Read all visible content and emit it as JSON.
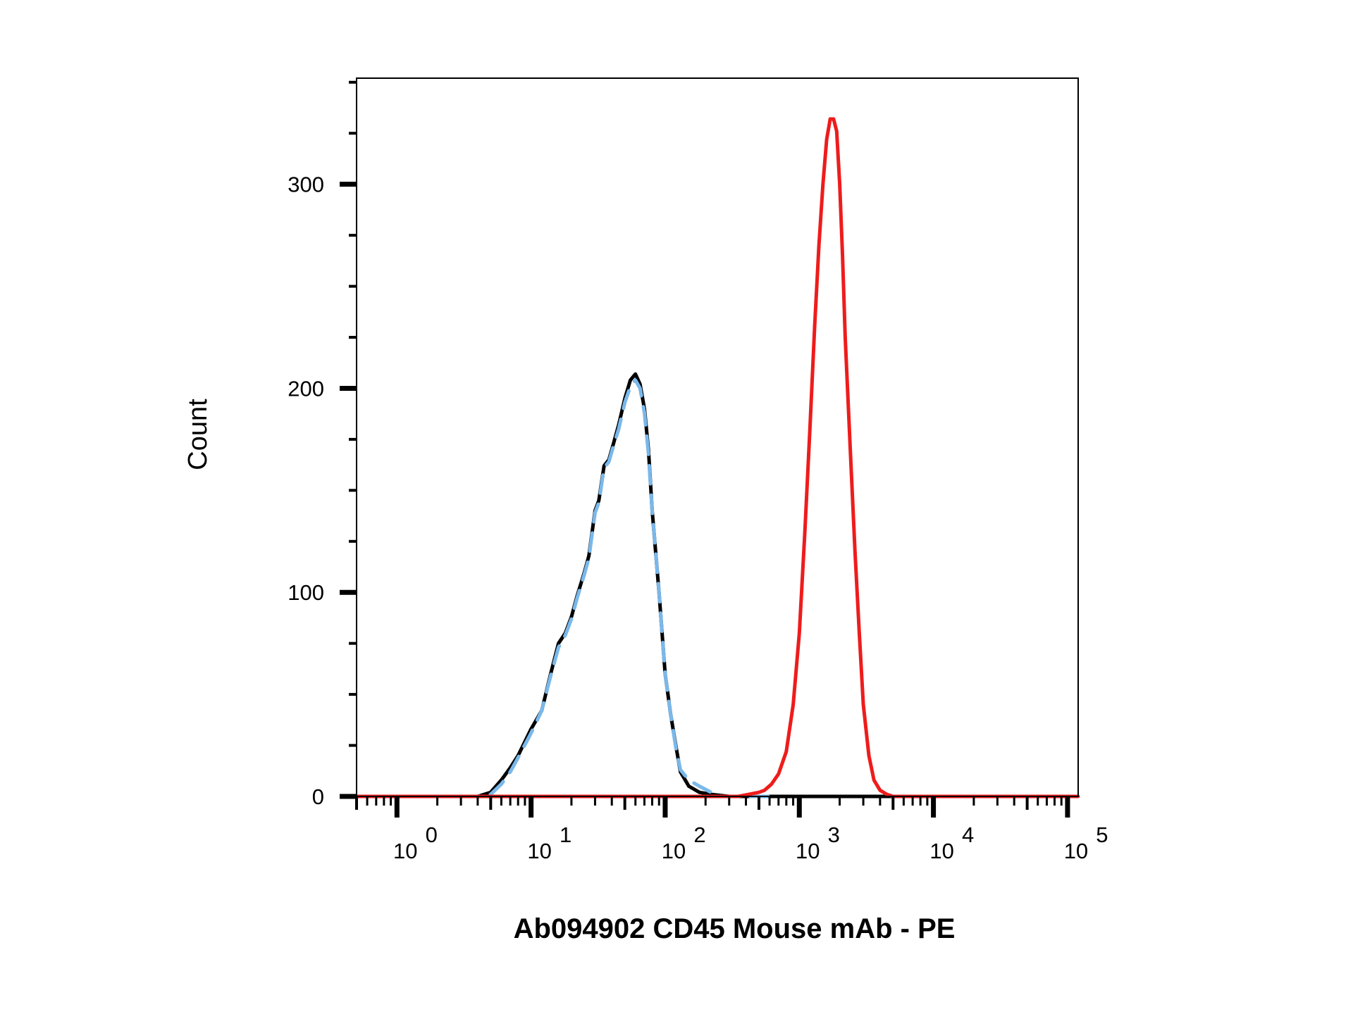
{
  "chart_data": {
    "type": "line",
    "title": "",
    "xlabel": "Ab094902 CD45 Mouse mAb - PE",
    "ylabel": "Count",
    "x_scale": "log",
    "xlim": [
      0.5,
      120000
    ],
    "ylim": [
      0,
      352
    ],
    "grid": false,
    "legend": "none",
    "x_ticks": [
      {
        "value": 1,
        "base": "10",
        "exp": "0"
      },
      {
        "value": 10,
        "base": "10",
        "exp": "1"
      },
      {
        "value": 100,
        "base": "10",
        "exp": "2"
      },
      {
        "value": 1000,
        "base": "10",
        "exp": "3"
      },
      {
        "value": 10000,
        "base": "10",
        "exp": "4"
      },
      {
        "value": 100000,
        "base": "10",
        "exp": "5"
      }
    ],
    "y_ticks": [
      {
        "value": 0,
        "label": "0"
      },
      {
        "value": 100,
        "label": "100"
      },
      {
        "value": 200,
        "label": "200"
      },
      {
        "value": 300,
        "label": "300"
      }
    ],
    "y_minor_step": 25,
    "series": [
      {
        "color": "#000000",
        "style": "solid",
        "points": [
          [
            3.2,
            0
          ],
          [
            4,
            0
          ],
          [
            5,
            2
          ],
          [
            6,
            8
          ],
          [
            7,
            14
          ],
          [
            8,
            20
          ],
          [
            10,
            33
          ],
          [
            12,
            42
          ],
          [
            14,
            60
          ],
          [
            16,
            75
          ],
          [
            18,
            80
          ],
          [
            20,
            88
          ],
          [
            22,
            98
          ],
          [
            25,
            110
          ],
          [
            27,
            118
          ],
          [
            30,
            140
          ],
          [
            32,
            145
          ],
          [
            35,
            162
          ],
          [
            38,
            165
          ],
          [
            40,
            170
          ],
          [
            45,
            182
          ],
          [
            50,
            195
          ],
          [
            55,
            204
          ],
          [
            60,
            207
          ],
          [
            65,
            202
          ],
          [
            70,
            190
          ],
          [
            75,
            170
          ],
          [
            80,
            140
          ],
          [
            90,
            100
          ],
          [
            100,
            60
          ],
          [
            110,
            40
          ],
          [
            120,
            25
          ],
          [
            130,
            12
          ],
          [
            150,
            5
          ],
          [
            180,
            2
          ],
          [
            220,
            1
          ],
          [
            300,
            0
          ],
          [
            1000,
            0
          ],
          [
            3000,
            0
          ],
          [
            6000,
            0
          ]
        ]
      },
      {
        "color": "#7ab8ea",
        "style": "dashed",
        "points": [
          [
            3,
            0
          ],
          [
            4,
            0
          ],
          [
            5,
            1
          ],
          [
            6,
            6
          ],
          [
            7,
            12
          ],
          [
            8,
            19
          ],
          [
            10,
            31
          ],
          [
            12,
            42
          ],
          [
            14,
            59
          ],
          [
            16,
            73
          ],
          [
            18,
            79
          ],
          [
            20,
            87
          ],
          [
            22,
            97
          ],
          [
            25,
            109
          ],
          [
            27,
            117
          ],
          [
            30,
            139
          ],
          [
            32,
            144
          ],
          [
            35,
            161
          ],
          [
            38,
            164
          ],
          [
            40,
            169
          ],
          [
            45,
            180
          ],
          [
            50,
            193
          ],
          [
            55,
            201
          ],
          [
            60,
            204
          ],
          [
            65,
            200
          ],
          [
            70,
            188
          ],
          [
            75,
            168
          ],
          [
            80,
            140
          ],
          [
            90,
            100
          ],
          [
            100,
            60
          ],
          [
            110,
            40
          ],
          [
            120,
            24
          ],
          [
            130,
            13
          ],
          [
            150,
            8
          ],
          [
            180,
            5
          ],
          [
            220,
            2
          ],
          [
            260,
            0
          ],
          [
            500,
            0
          ],
          [
            700,
            0
          ]
        ]
      },
      {
        "color": "#ee1c1c",
        "style": "solid",
        "points": [
          [
            0.5,
            0
          ],
          [
            200,
            0
          ],
          [
            350,
            0
          ],
          [
            420,
            1
          ],
          [
            500,
            2
          ],
          [
            550,
            3
          ],
          [
            620,
            6
          ],
          [
            700,
            11
          ],
          [
            800,
            22
          ],
          [
            900,
            45
          ],
          [
            1000,
            80
          ],
          [
            1100,
            130
          ],
          [
            1200,
            180
          ],
          [
            1300,
            230
          ],
          [
            1400,
            270
          ],
          [
            1500,
            300
          ],
          [
            1600,
            322
          ],
          [
            1700,
            332
          ],
          [
            1800,
            332
          ],
          [
            1900,
            326
          ],
          [
            2000,
            300
          ],
          [
            2100,
            265
          ],
          [
            2200,
            225
          ],
          [
            2400,
            170
          ],
          [
            2600,
            120
          ],
          [
            2800,
            80
          ],
          [
            3000,
            45
          ],
          [
            3300,
            20
          ],
          [
            3600,
            8
          ],
          [
            4000,
            3
          ],
          [
            4500,
            1
          ],
          [
            5000,
            0
          ],
          [
            10000,
            0
          ],
          [
            120000,
            0
          ]
        ]
      }
    ]
  }
}
